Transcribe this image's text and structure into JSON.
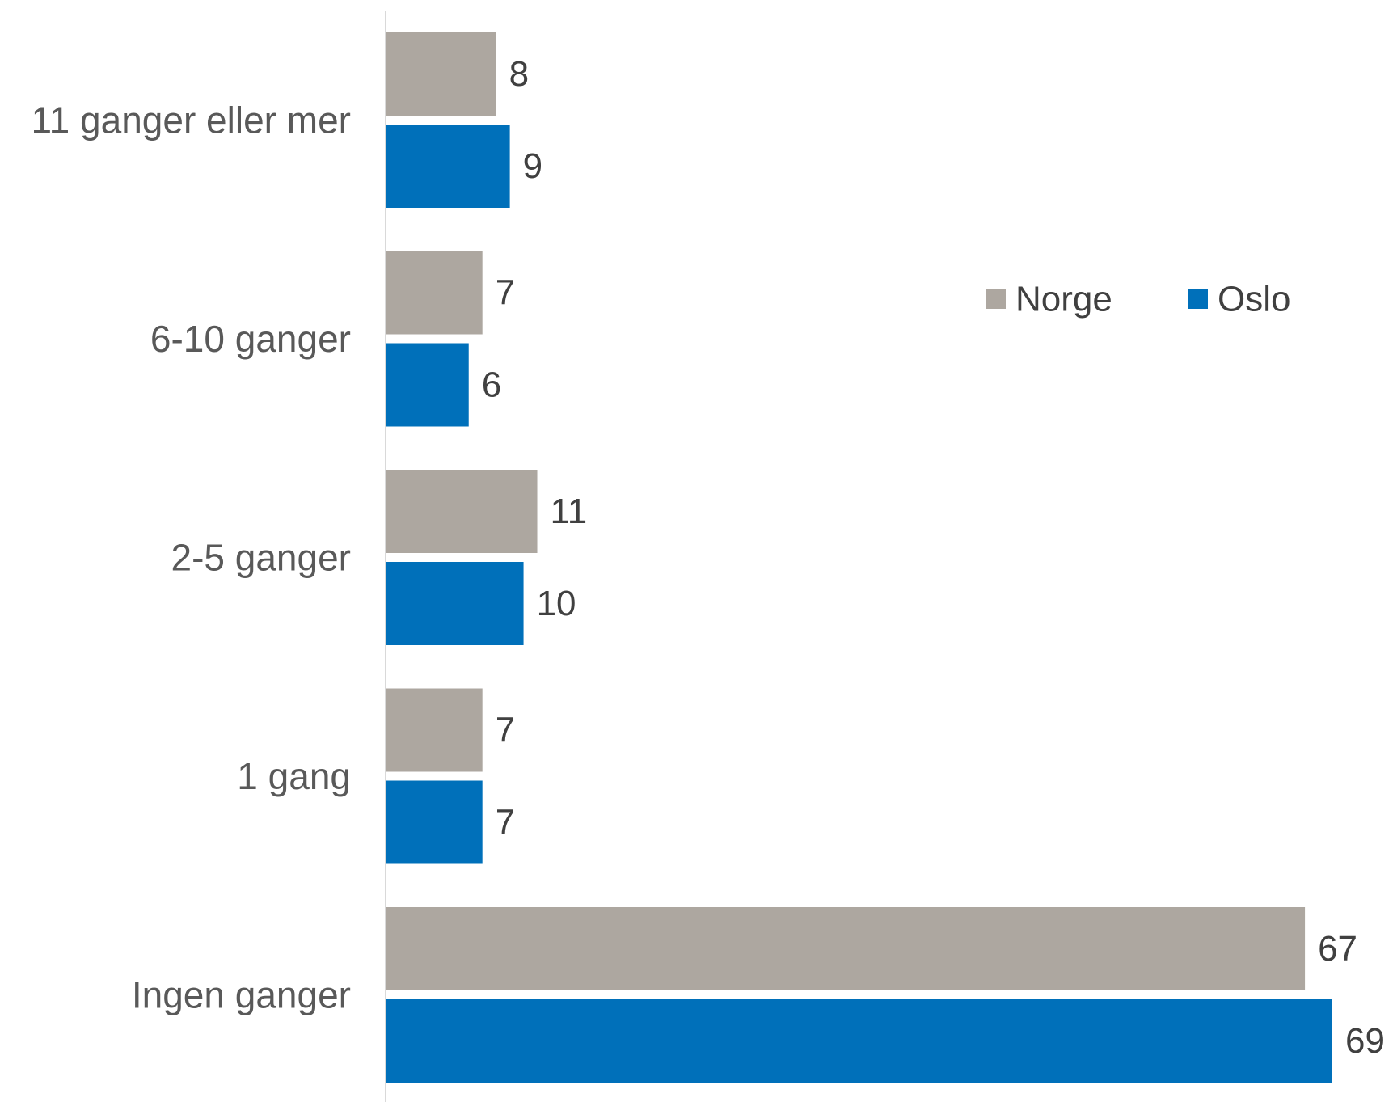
{
  "chart_data": {
    "type": "bar",
    "orientation": "horizontal",
    "categories": [
      "11 ganger eller mer",
      "6-10 ganger",
      "2-5 ganger",
      "1 gang",
      "Ingen ganger"
    ],
    "series": [
      {
        "name": "Norge",
        "color": "#ADA7A0",
        "values": [
          8,
          7,
          11,
          7,
          67
        ]
      },
      {
        "name": "Oslo",
        "color": "#0070BA",
        "values": [
          9,
          6,
          10,
          7,
          69
        ]
      }
    ],
    "highlight_color": "#FF0000",
    "highlighted_labels": [
      {
        "series": "Oslo",
        "category": "11 ganger eller mer"
      },
      {
        "series": "Oslo",
        "category": "Ingen ganger"
      }
    ],
    "default_label_color": "#404040",
    "xlim": [
      0,
      69
    ],
    "grid": false,
    "legend_position": "right"
  }
}
